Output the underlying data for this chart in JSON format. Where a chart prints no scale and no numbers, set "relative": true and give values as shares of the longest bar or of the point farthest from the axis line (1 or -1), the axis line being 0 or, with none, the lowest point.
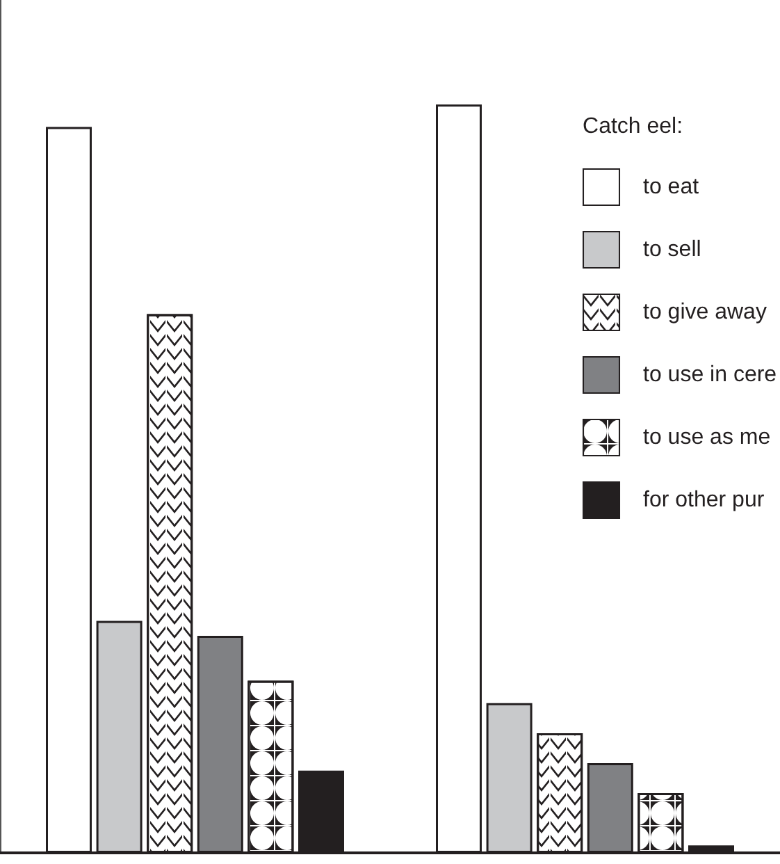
{
  "chart_data": {
    "type": "bar",
    "relative": true,
    "legend_title": "Catch eel:",
    "legend": "top right",
    "grid": false,
    "categories": [
      null,
      null
    ],
    "series": [
      {
        "name": "to eat",
        "color": "#ffffff",
        "values": [
          0.97,
          1
        ]
      },
      {
        "name": "to sell",
        "color": "#c8c9cb",
        "values": [
          0.31,
          0.2
        ]
      },
      {
        "name": "to give away",
        "color": "#ffffff",
        "values": [
          0.72,
          0.16
        ]
      },
      {
        "name": "to use in cere",
        "color": "#808184",
        "values": [
          0.29,
          0.12
        ]
      },
      {
        "name": "to use as me",
        "color": "#ffffff",
        "values": [
          0.23,
          0.08
        ]
      },
      {
        "name": "for other pur",
        "color": "#231f20",
        "values": [
          0.11,
          0.01
        ]
      }
    ]
  }
}
